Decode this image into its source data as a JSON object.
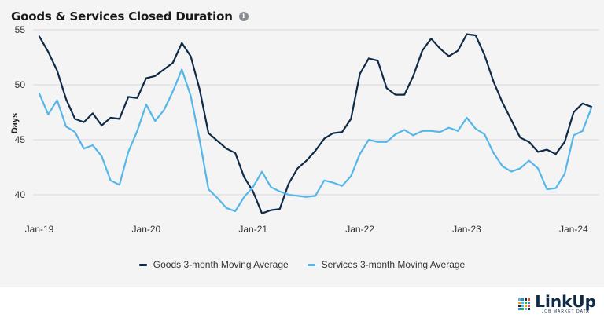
{
  "header": {
    "title": "Goods & Services Closed Duration",
    "info_icon": "info-icon"
  },
  "brand": {
    "name": "LinkUp",
    "tagline": "JOB MARKET DATA"
  },
  "colors": {
    "goods": "#0f2a46",
    "services": "#56b6e8",
    "grid": "#d9d9dc",
    "axis": "#333333"
  },
  "chart_data": {
    "type": "line",
    "title": "Goods & Services Closed Duration",
    "xlabel": "",
    "ylabel": "Days",
    "ylim": [
      38,
      55
    ],
    "yticks": [
      40,
      45,
      50,
      55
    ],
    "xlim": [
      "2019-01",
      "2024-03"
    ],
    "xticks": [
      {
        "label": "Jan-19",
        "x": "2019-01"
      },
      {
        "label": "Jan-20",
        "x": "2020-01"
      },
      {
        "label": "Jan-21",
        "x": "2021-01"
      },
      {
        "label": "Jan-22",
        "x": "2022-01"
      },
      {
        "label": "Jan-23",
        "x": "2023-01"
      },
      {
        "label": "Jan-24",
        "x": "2024-01"
      }
    ],
    "grid": true,
    "legend": "bottom",
    "x": [
      "2019-01",
      "2019-02",
      "2019-03",
      "2019-04",
      "2019-05",
      "2019-06",
      "2019-07",
      "2019-08",
      "2019-09",
      "2019-10",
      "2019-11",
      "2019-12",
      "2020-01",
      "2020-02",
      "2020-03",
      "2020-04",
      "2020-05",
      "2020-06",
      "2020-07",
      "2020-08",
      "2020-09",
      "2020-10",
      "2020-11",
      "2020-12",
      "2021-01",
      "2021-02",
      "2021-03",
      "2021-04",
      "2021-05",
      "2021-06",
      "2021-07",
      "2021-08",
      "2021-09",
      "2021-10",
      "2021-11",
      "2021-12",
      "2022-01",
      "2022-02",
      "2022-03",
      "2022-04",
      "2022-05",
      "2022-06",
      "2022-07",
      "2022-08",
      "2022-09",
      "2022-10",
      "2022-11",
      "2022-12",
      "2023-01",
      "2023-02",
      "2023-03",
      "2023-04",
      "2023-05",
      "2023-06",
      "2023-07",
      "2023-08",
      "2023-09",
      "2023-10",
      "2023-11",
      "2023-12",
      "2024-01",
      "2024-02",
      "2024-03"
    ],
    "series": [
      {
        "name": "Goods 3-month Moving Average",
        "color": "#0f2a46",
        "values": [
          54.4,
          53.0,
          51.3,
          48.7,
          46.9,
          46.6,
          47.4,
          46.3,
          47.0,
          46.9,
          48.9,
          48.8,
          50.6,
          50.8,
          51.4,
          52.0,
          53.8,
          52.6,
          49.6,
          45.6,
          44.9,
          44.2,
          43.8,
          41.6,
          40.3,
          38.3,
          38.6,
          38.7,
          41.0,
          42.4,
          43.1,
          44.0,
          45.1,
          45.6,
          45.7,
          46.9,
          51.0,
          52.4,
          52.2,
          49.7,
          49.1,
          49.1,
          50.8,
          53.1,
          54.2,
          53.3,
          52.6,
          53.1,
          54.6,
          54.5,
          52.7,
          50.3,
          48.4,
          46.8,
          45.2,
          44.8,
          43.9,
          44.1,
          43.7,
          44.8,
          47.5,
          48.3,
          48.0
        ]
      },
      {
        "name": "Services 3-month Moving Average",
        "color": "#56b6e8",
        "values": [
          49.2,
          47.3,
          48.6,
          46.2,
          45.7,
          44.2,
          44.5,
          43.5,
          41.3,
          40.9,
          43.9,
          45.8,
          48.2,
          46.7,
          47.7,
          49.4,
          51.4,
          49.0,
          45.0,
          40.5,
          39.7,
          38.8,
          38.5,
          39.8,
          40.7,
          42.1,
          40.7,
          40.3,
          40.0,
          39.9,
          39.8,
          39.9,
          41.3,
          41.1,
          40.8,
          41.7,
          43.7,
          45.0,
          44.8,
          44.8,
          45.5,
          45.9,
          45.4,
          45.8,
          45.8,
          45.7,
          46.1,
          45.8,
          47.0,
          46.0,
          45.5,
          43.8,
          42.6,
          42.1,
          42.4,
          43.1,
          42.4,
          40.5,
          40.6,
          41.9,
          45.4,
          45.8,
          47.9
        ]
      }
    ]
  }
}
